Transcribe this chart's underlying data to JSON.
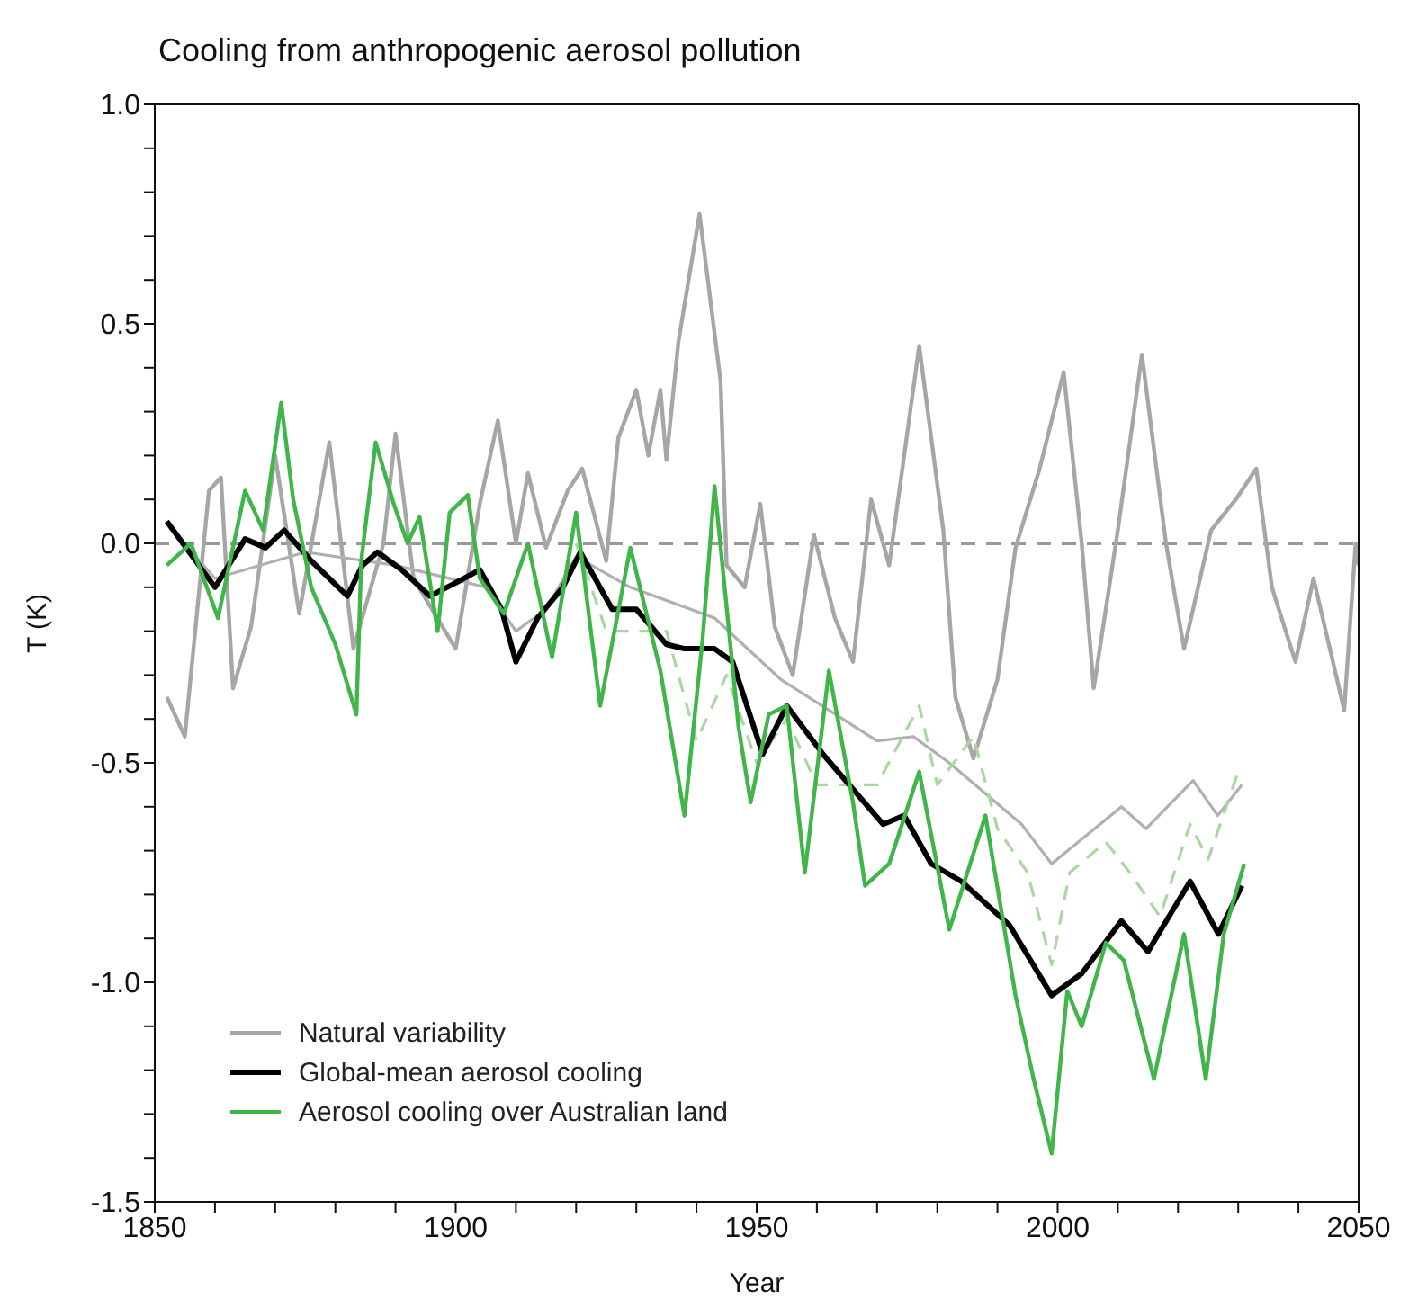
{
  "chart_data": {
    "type": "line",
    "title": "Cooling from anthropogenic aerosol pollution",
    "xlabel": "Year",
    "ylabel": "T (K)",
    "xlim": [
      1850,
      2050
    ],
    "ylim": [
      -1.5,
      1.0
    ],
    "xticks": [
      1850,
      {
        "value": 1860,
        "label": null
      },
      {
        "value": 1870,
        "label": null
      },
      {
        "value": 1880,
        "label": null
      },
      {
        "value": 1890,
        "label": null
      },
      1900,
      {
        "value": 1910,
        "label": null
      },
      {
        "value": 1920,
        "label": null
      },
      {
        "value": 1930,
        "label": null
      },
      {
        "value": 1940,
        "label": null
      },
      1950,
      {
        "value": 1960,
        "label": null
      },
      {
        "value": 1970,
        "label": null
      },
      {
        "value": 1980,
        "label": null
      },
      {
        "value": 1990,
        "label": null
      },
      2000,
      {
        "value": 2010,
        "label": null
      },
      {
        "value": 2020,
        "label": null
      },
      {
        "value": 2030,
        "label": null
      },
      {
        "value": 2040,
        "label": null
      },
      2050
    ],
    "yticks": [
      {
        "value": -1.5,
        "label": "-1.5"
      },
      {
        "value": -1.4,
        "label": null
      },
      {
        "value": -1.3,
        "label": null
      },
      {
        "value": -1.2,
        "label": null
      },
      {
        "value": -1.1,
        "label": null
      },
      {
        "value": -1.0,
        "label": "-1.0"
      },
      {
        "value": -0.9,
        "label": null
      },
      {
        "value": -0.8,
        "label": null
      },
      {
        "value": -0.7,
        "label": null
      },
      {
        "value": -0.6,
        "label": null
      },
      {
        "value": -0.5,
        "label": "-0.5"
      },
      {
        "value": -0.4,
        "label": null
      },
      {
        "value": -0.3,
        "label": null
      },
      {
        "value": -0.2,
        "label": null
      },
      {
        "value": -0.1,
        "label": null
      },
      {
        "value": 0,
        "label": "0.0"
      },
      {
        "value": 0.1,
        "label": null
      },
      {
        "value": 0.2,
        "label": null
      },
      {
        "value": 0.3,
        "label": null
      },
      {
        "value": 0.4,
        "label": null
      },
      {
        "value": 0.5,
        "label": "0.5"
      },
      {
        "value": 0.6,
        "label": null
      },
      {
        "value": 0.7,
        "label": null
      },
      {
        "value": 0.8,
        "label": null
      },
      {
        "value": 0.9,
        "label": null
      },
      {
        "value": 1.0,
        "label": "1.0"
      }
    ],
    "legend": "bottom left",
    "marker": "none",
    "ref_lines": [
      {
        "axis": "y",
        "value": 0,
        "color": "#999999",
        "line_style": "dashed"
      }
    ],
    "series": [
      {
        "name": "Natural variability",
        "color": "#a6a6a6",
        "x": [
          1852,
          1855,
          1859,
          1861,
          1863,
          1866,
          1870,
          1874,
          1879,
          1883,
          1888,
          1890,
          1893,
          1900,
          1904,
          1907,
          1910,
          1912,
          1915,
          1918.6,
          1921,
          1925,
          1927,
          1930,
          1932,
          1934,
          1935,
          1937,
          1940.5,
          1944,
          1945,
          1948,
          1950.6,
          1953,
          1956,
          1959.5,
          1963,
          1966,
          1969,
          1972,
          1977,
          1981,
          1983,
          1986,
          1990,
          1993,
          1997,
          2001,
          2004,
          2006,
          2010,
          2014,
          2018,
          2021,
          2025.5,
          2029.6,
          2033,
          2035.6,
          2039.5,
          2042.5,
          2047.6,
          2049.5,
          2050
        ],
        "values": [
          -0.35,
          -0.44,
          0.12,
          0.15,
          -0.33,
          -0.19,
          0.2,
          -0.16,
          0.23,
          -0.24,
          0.0,
          0.25,
          -0.08,
          -0.24,
          0.09,
          0.28,
          0.0,
          0.16,
          -0.01,
          0.12,
          0.17,
          -0.04,
          0.24,
          0.35,
          0.2,
          0.35,
          0.19,
          0.46,
          0.75,
          0.37,
          -0.05,
          -0.1,
          0.09,
          -0.19,
          -0.3,
          0.02,
          -0.17,
          -0.27,
          0.1,
          -0.05,
          0.45,
          0.03,
          -0.35,
          -0.49,
          -0.31,
          -0.01,
          0.17,
          0.39,
          0.0,
          -0.33,
          0.03,
          0.43,
          0.0,
          -0.24,
          0.03,
          0.1,
          0.17,
          -0.1,
          -0.27,
          -0.08,
          -0.38,
          0.0,
          -0.05
        ]
      },
      {
        "color": "#b0b0b0",
        "x": [
          1853,
          1860,
          1875,
          1890,
          1905,
          1910,
          1915,
          1920,
          1929,
          1943,
          1954,
          1970,
          1976,
          1982,
          1994,
          1999,
          2010.6,
          2014.7,
          2022.5,
          2026.6,
          2030.6
        ],
        "values": [
          0.03,
          -0.08,
          -0.02,
          -0.05,
          -0.1,
          -0.2,
          -0.15,
          -0.03,
          -0.1,
          -0.17,
          -0.31,
          -0.45,
          -0.44,
          -0.5,
          -0.64,
          -0.73,
          -0.6,
          -0.65,
          -0.54,
          -0.62,
          -0.55
        ]
      },
      {
        "color": "#a8d8a0",
        "line_style": "dashed",
        "x": [
          1920,
          1925,
          1935,
          1940,
          1945,
          1950,
          1955,
          1960,
          1965,
          1970,
          1977,
          1980,
          1986,
          1990,
          1995,
          1999,
          2002,
          2008,
          2012,
          2017,
          2022,
          2025,
          2030
        ],
        "values": [
          0.0,
          -0.2,
          -0.2,
          -0.45,
          -0.3,
          -0.5,
          -0.4,
          -0.55,
          -0.55,
          -0.55,
          -0.37,
          -0.55,
          -0.44,
          -0.65,
          -0.75,
          -0.96,
          -0.75,
          -0.68,
          -0.75,
          -0.85,
          -0.64,
          -0.72,
          -0.52
        ]
      },
      {
        "name": "Global-mean aerosol cooling",
        "color": "#000000",
        "x": [
          1852,
          1860,
          1865,
          1868.4,
          1871.5,
          1876,
          1882,
          1884.5,
          1887,
          1891,
          1895.7,
          1900,
          1904,
          1907.6,
          1910,
          1913.6,
          1917.8,
          1920.7,
          1926,
          1930,
          1935,
          1938,
          1943,
          1946,
          1951,
          1955,
          1961,
          1966,
          1971,
          1974.5,
          1979,
          1984,
          1992,
          1999,
          2004,
          2010.6,
          2015,
          2022,
          2026.7,
          2030.6
        ],
        "values": [
          0.05,
          -0.1,
          0.01,
          -0.01,
          0.03,
          -0.04,
          -0.12,
          -0.05,
          -0.02,
          -0.06,
          -0.12,
          -0.09,
          -0.06,
          -0.15,
          -0.27,
          -0.17,
          -0.1,
          -0.02,
          -0.15,
          -0.15,
          -0.23,
          -0.24,
          -0.24,
          -0.27,
          -0.48,
          -0.37,
          -0.48,
          -0.56,
          -0.64,
          -0.62,
          -0.73,
          -0.77,
          -0.87,
          -1.03,
          -0.98,
          -0.86,
          -0.93,
          -0.77,
          -0.89,
          -0.78
        ]
      },
      {
        "name": "Aerosol cooling over Australian land",
        "color": "#3fb54a",
        "x": [
          1852,
          1856,
          1860.5,
          1865,
          1868,
          1871,
          1873,
          1876,
          1880,
          1883.5,
          1884.3,
          1886.7,
          1889.7,
          1892,
          1894,
          1897,
          1899,
          1902,
          1904,
          1908,
          1912,
          1916,
          1920,
          1924,
          1929,
          1934,
          1938,
          1941,
          1943,
          1947,
          1949,
          1952,
          1955,
          1958,
          1962,
          1966,
          1968,
          1972,
          1977,
          1982,
          1988,
          1993,
          1996,
          1999,
          2001.6,
          2004,
          2008,
          2011,
          2016,
          2021,
          2024.6,
          2027.6,
          2031
        ],
        "values": [
          -0.05,
          0.0,
          -0.17,
          0.12,
          0.03,
          0.32,
          0.1,
          -0.1,
          -0.23,
          -0.39,
          -0.04,
          0.23,
          0.09,
          0.0,
          0.06,
          -0.2,
          0.07,
          0.11,
          -0.08,
          -0.16,
          0.0,
          -0.26,
          0.07,
          -0.37,
          -0.01,
          -0.29,
          -0.62,
          -0.22,
          0.13,
          -0.42,
          -0.59,
          -0.39,
          -0.37,
          -0.75,
          -0.29,
          -0.59,
          -0.78,
          -0.73,
          -0.52,
          -0.88,
          -0.62,
          -1.03,
          -1.22,
          -1.39,
          -1.02,
          -1.1,
          -0.91,
          -0.95,
          -1.22,
          -0.89,
          -1.22,
          -0.89,
          -0.73
        ]
      }
    ]
  }
}
